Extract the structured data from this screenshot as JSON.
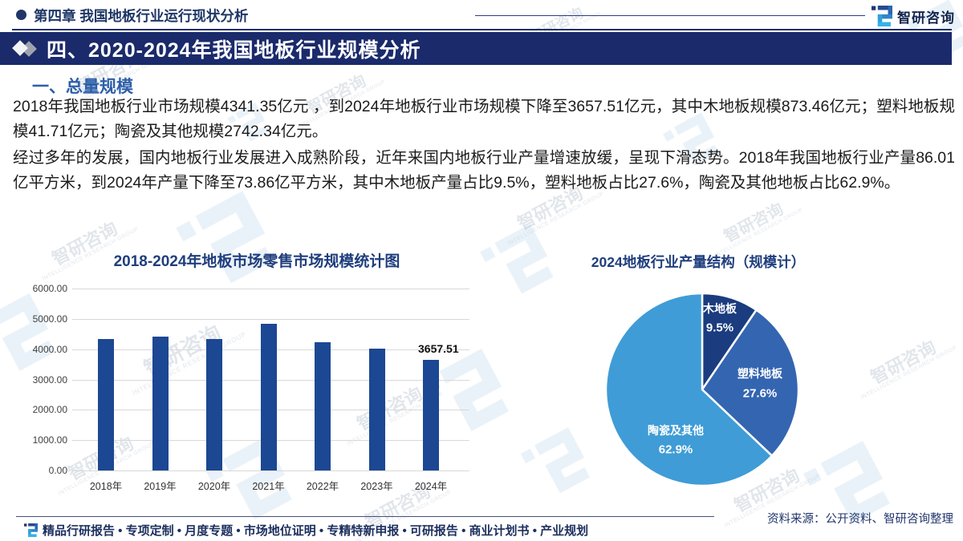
{
  "header": {
    "chapter": "第四章 我国地板行业运行现状分析",
    "logo_text": "智研咨询"
  },
  "banner": {
    "title": "四、2020-2024年我国地板行业规模分析"
  },
  "section": {
    "title": "一、总量规模"
  },
  "paragraphs": {
    "p1": "2018年我国地板行业市场规模4341.35亿元 ，到2024年地板行业市场规模下降至3657.51亿元，其中木地板规模873.46亿元；塑料地板规模41.71亿元；陶瓷及其他规模2742.34亿元。",
    "p2": "经过多年的发展，国内地板行业发展进入成熟阶段，近年来国内地板行业产量增速放缓，呈现下滑态势。2018年我国地板行业产量86.01亿平方米，到2024年产量下降至73.86亿平方米，其中木地板产量占比9.5%，塑料地板占比27.6%，陶瓷及其他地板占比62.9%。"
  },
  "chart_data": [
    {
      "type": "bar",
      "title": "2018-2024年地板市场零售市场规模统计图",
      "categories": [
        "2018年",
        "2019年",
        "2020年",
        "2021年",
        "2022年",
        "2023年",
        "2024年"
      ],
      "values": [
        4341.35,
        4410,
        4340,
        4850,
        4230,
        4010,
        3657.51
      ],
      "ylim": [
        0,
        6000
      ],
      "ytick_labels": [
        "0.00",
        "1000.00",
        "2000.00",
        "3000.00",
        "4000.00",
        "5000.00",
        "6000.00"
      ],
      "grid": "horizontal",
      "bar_color": "#1c4792",
      "data_labels": [
        {
          "index": 6,
          "text": "3657.51"
        }
      ]
    },
    {
      "type": "pie",
      "title": "2024地板行业产量结构（规模计）",
      "start_angle": "top",
      "direction": "clockwise",
      "slices": [
        {
          "label": "木地板",
          "value": 9.5,
          "display": "9.5%",
          "color": "#1b3c7e"
        },
        {
          "label": "塑料地板",
          "value": 27.6,
          "display": "27.6%",
          "color": "#3465b0"
        },
        {
          "label": "陶瓷及其他",
          "value": 62.9,
          "display": "62.9%",
          "color": "#3f9cd6"
        }
      ]
    }
  ],
  "footer": {
    "services": "精品行研报告 • 专项定制 • 月度专题 • 市场地位证明 • 专精特新申报 • 可研报告 • 商业计划书 • 产业规划",
    "source": "资料来源：公开资料、智研咨询整理"
  },
  "watermark": {
    "text": "智研咨询",
    "subtext": "INTELLIGENCE RESEARCH GROUP"
  },
  "colors": {
    "banner_bg": "#1a2a6b",
    "heading_navy": "#1f3766",
    "section_blue": "#2d5fa8",
    "chart_title_blue": "#1f3e7d",
    "bar_blue": "#1c4792",
    "pie_dark": "#1b3c7e",
    "pie_medium": "#3465b0",
    "pie_light": "#3f9cd6",
    "logo_blue_dark": "#234a8f",
    "logo_blue_light": "#33a9e0"
  }
}
